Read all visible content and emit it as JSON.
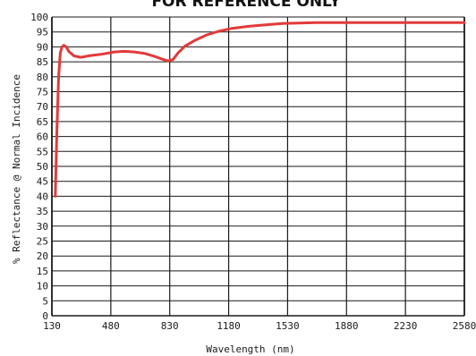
{
  "chart_data": {
    "type": "line",
    "title": "FOR REFERENCE ONLY",
    "xlabel": "Wavelength (nm)",
    "ylabel": "% Reflectance @ Normal Incidence",
    "x_ticks": [
      130,
      480,
      830,
      1180,
      1530,
      1880,
      2230,
      2580
    ],
    "y_ticks": [
      0,
      5,
      10,
      15,
      20,
      25,
      30,
      35,
      40,
      45,
      50,
      55,
      60,
      65,
      70,
      75,
      80,
      85,
      90,
      95,
      100
    ],
    "xlim": [
      130,
      2580
    ],
    "ylim": [
      0,
      100
    ],
    "grid": true,
    "series": [
      {
        "color": "#e23a3a",
        "x": [
          150,
          160,
          170,
          180,
          190,
          200,
          215,
          230,
          260,
          300,
          350,
          420,
          500,
          560,
          620,
          680,
          740,
          790,
          820,
          850,
          880,
          920,
          980,
          1050,
          1120,
          1200,
          1300,
          1400,
          1500,
          1600,
          1700,
          1900,
          2100,
          2300,
          2500,
          2580
        ],
        "y": [
          40,
          62,
          80,
          88,
          90,
          90.5,
          90,
          88.5,
          87,
          86.5,
          87,
          87.5,
          88.3,
          88.5,
          88.3,
          87.8,
          86.8,
          85.8,
          85.3,
          85.8,
          88,
          90.2,
          92.2,
          94,
          95.2,
          96.2,
          96.9,
          97.4,
          97.8,
          98,
          98.1,
          98.1,
          98.1,
          98.1,
          98.1,
          98.1
        ]
      }
    ]
  }
}
